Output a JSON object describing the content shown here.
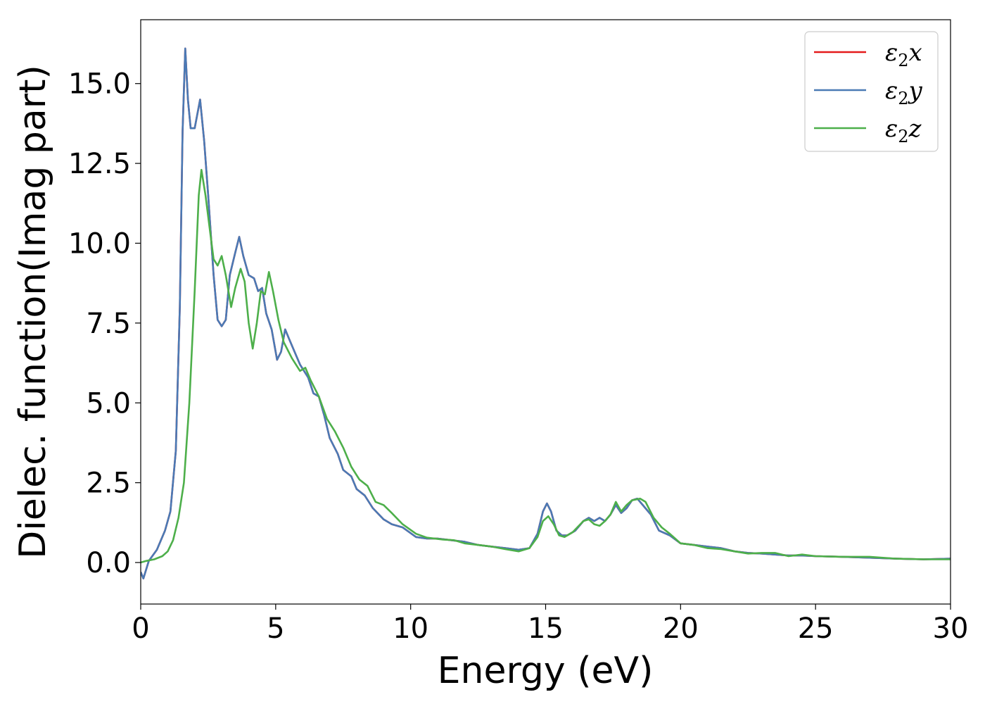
{
  "chart_data": {
    "type": "line",
    "xlabel": "Energy (eV)",
    "ylabel": "Dielec. function(Imag part)",
    "xlim": [
      0,
      30
    ],
    "ylim": [
      -1.3,
      17.0
    ],
    "xticks": [
      0,
      5,
      10,
      15,
      20,
      25,
      30
    ],
    "xtick_labels": [
      "0",
      "5",
      "10",
      "15",
      "20",
      "25",
      "30"
    ],
    "yticks": [
      0.0,
      2.5,
      5.0,
      7.5,
      10.0,
      12.5,
      15.0
    ],
    "ytick_labels": [
      "0.0",
      "2.5",
      "5.0",
      "7.5",
      "10.0",
      "12.5",
      "15.0"
    ],
    "grid": false,
    "legend_position": "top-right",
    "series": [
      {
        "name": "ε₂x",
        "legend_base": "ε",
        "legend_sub": "2",
        "legend_suffix": "x",
        "color": "#e41a1c",
        "points": [
          [
            0,
            -0.3
          ],
          [
            0.1,
            -0.5
          ],
          [
            0.3,
            0.05
          ],
          [
            0.6,
            0.4
          ],
          [
            0.9,
            1.0
          ],
          [
            1.1,
            1.6
          ],
          [
            1.3,
            3.5
          ],
          [
            1.45,
            8.0
          ],
          [
            1.55,
            13.5
          ],
          [
            1.65,
            16.1
          ],
          [
            1.75,
            14.5
          ],
          [
            1.85,
            13.6
          ],
          [
            2.0,
            13.6
          ],
          [
            2.2,
            14.5
          ],
          [
            2.35,
            13.2
          ],
          [
            2.5,
            11.5
          ],
          [
            2.7,
            9.0
          ],
          [
            2.85,
            7.6
          ],
          [
            3.0,
            7.4
          ],
          [
            3.15,
            7.6
          ],
          [
            3.3,
            9.0
          ],
          [
            3.5,
            9.7
          ],
          [
            3.65,
            10.2
          ],
          [
            3.8,
            9.6
          ],
          [
            4.0,
            9.0
          ],
          [
            4.2,
            8.9
          ],
          [
            4.35,
            8.5
          ],
          [
            4.5,
            8.6
          ],
          [
            4.65,
            7.8
          ],
          [
            4.85,
            7.3
          ],
          [
            5.05,
            6.35
          ],
          [
            5.2,
            6.6
          ],
          [
            5.35,
            7.3
          ],
          [
            5.5,
            7.0
          ],
          [
            5.7,
            6.6
          ],
          [
            5.9,
            6.2
          ],
          [
            6.2,
            5.8
          ],
          [
            6.4,
            5.3
          ],
          [
            6.6,
            5.2
          ],
          [
            6.8,
            4.6
          ],
          [
            7.0,
            3.9
          ],
          [
            7.3,
            3.4
          ],
          [
            7.5,
            2.9
          ],
          [
            7.8,
            2.7
          ],
          [
            8.0,
            2.3
          ],
          [
            8.3,
            2.1
          ],
          [
            8.6,
            1.7
          ],
          [
            9.0,
            1.35
          ],
          [
            9.3,
            1.2
          ],
          [
            9.7,
            1.1
          ],
          [
            10.2,
            0.8
          ],
          [
            10.6,
            0.75
          ],
          [
            11.0,
            0.75
          ],
          [
            11.5,
            0.7
          ],
          [
            12.0,
            0.65
          ],
          [
            12.5,
            0.55
          ],
          [
            13.0,
            0.5
          ],
          [
            13.5,
            0.45
          ],
          [
            14.0,
            0.4
          ],
          [
            14.4,
            0.45
          ],
          [
            14.7,
            0.9
          ],
          [
            14.9,
            1.6
          ],
          [
            15.05,
            1.85
          ],
          [
            15.2,
            1.6
          ],
          [
            15.4,
            1.0
          ],
          [
            15.6,
            0.85
          ],
          [
            15.8,
            0.85
          ],
          [
            16.1,
            1.0
          ],
          [
            16.4,
            1.3
          ],
          [
            16.6,
            1.4
          ],
          [
            16.8,
            1.3
          ],
          [
            17.0,
            1.4
          ],
          [
            17.2,
            1.3
          ],
          [
            17.4,
            1.5
          ],
          [
            17.6,
            1.8
          ],
          [
            17.8,
            1.55
          ],
          [
            18.0,
            1.7
          ],
          [
            18.2,
            1.95
          ],
          [
            18.4,
            2.0
          ],
          [
            18.6,
            1.8
          ],
          [
            18.9,
            1.5
          ],
          [
            19.2,
            1.0
          ],
          [
            19.6,
            0.85
          ],
          [
            20.0,
            0.6
          ],
          [
            20.5,
            0.55
          ],
          [
            21.0,
            0.5
          ],
          [
            21.5,
            0.45
          ],
          [
            22.0,
            0.35
          ],
          [
            22.5,
            0.3
          ],
          [
            23.0,
            0.28
          ],
          [
            23.5,
            0.25
          ],
          [
            24.0,
            0.22
          ],
          [
            24.5,
            0.22
          ],
          [
            25.0,
            0.2
          ],
          [
            26.0,
            0.18
          ],
          [
            27.0,
            0.15
          ],
          [
            28.0,
            0.12
          ],
          [
            29.0,
            0.1
          ],
          [
            30.0,
            0.12
          ]
        ]
      },
      {
        "name": "ε₂y",
        "legend_base": "ε",
        "legend_sub": "2",
        "legend_suffix": "y",
        "color": "#4a7ab5",
        "points": [
          [
            0,
            -0.3
          ],
          [
            0.1,
            -0.5
          ],
          [
            0.3,
            0.05
          ],
          [
            0.6,
            0.4
          ],
          [
            0.9,
            1.0
          ],
          [
            1.1,
            1.6
          ],
          [
            1.3,
            3.5
          ],
          [
            1.45,
            8.0
          ],
          [
            1.55,
            13.5
          ],
          [
            1.65,
            16.1
          ],
          [
            1.75,
            14.5
          ],
          [
            1.85,
            13.6
          ],
          [
            2.0,
            13.6
          ],
          [
            2.2,
            14.5
          ],
          [
            2.35,
            13.2
          ],
          [
            2.5,
            11.5
          ],
          [
            2.7,
            9.0
          ],
          [
            2.85,
            7.6
          ],
          [
            3.0,
            7.4
          ],
          [
            3.15,
            7.6
          ],
          [
            3.3,
            9.0
          ],
          [
            3.5,
            9.7
          ],
          [
            3.65,
            10.2
          ],
          [
            3.8,
            9.6
          ],
          [
            4.0,
            9.0
          ],
          [
            4.2,
            8.9
          ],
          [
            4.35,
            8.5
          ],
          [
            4.5,
            8.6
          ],
          [
            4.65,
            7.8
          ],
          [
            4.85,
            7.3
          ],
          [
            5.05,
            6.35
          ],
          [
            5.2,
            6.6
          ],
          [
            5.35,
            7.3
          ],
          [
            5.5,
            7.0
          ],
          [
            5.7,
            6.6
          ],
          [
            5.9,
            6.2
          ],
          [
            6.2,
            5.8
          ],
          [
            6.4,
            5.3
          ],
          [
            6.6,
            5.2
          ],
          [
            6.8,
            4.6
          ],
          [
            7.0,
            3.9
          ],
          [
            7.3,
            3.4
          ],
          [
            7.5,
            2.9
          ],
          [
            7.8,
            2.7
          ],
          [
            8.0,
            2.3
          ],
          [
            8.3,
            2.1
          ],
          [
            8.6,
            1.7
          ],
          [
            9.0,
            1.35
          ],
          [
            9.3,
            1.2
          ],
          [
            9.7,
            1.1
          ],
          [
            10.2,
            0.8
          ],
          [
            10.6,
            0.75
          ],
          [
            11.0,
            0.75
          ],
          [
            11.5,
            0.7
          ],
          [
            12.0,
            0.65
          ],
          [
            12.5,
            0.55
          ],
          [
            13.0,
            0.5
          ],
          [
            13.5,
            0.45
          ],
          [
            14.0,
            0.4
          ],
          [
            14.4,
            0.45
          ],
          [
            14.7,
            0.9
          ],
          [
            14.9,
            1.6
          ],
          [
            15.05,
            1.85
          ],
          [
            15.2,
            1.6
          ],
          [
            15.4,
            1.0
          ],
          [
            15.6,
            0.85
          ],
          [
            15.8,
            0.85
          ],
          [
            16.1,
            1.0
          ],
          [
            16.4,
            1.3
          ],
          [
            16.6,
            1.4
          ],
          [
            16.8,
            1.3
          ],
          [
            17.0,
            1.4
          ],
          [
            17.2,
            1.3
          ],
          [
            17.4,
            1.5
          ],
          [
            17.6,
            1.8
          ],
          [
            17.8,
            1.55
          ],
          [
            18.0,
            1.7
          ],
          [
            18.2,
            1.95
          ],
          [
            18.4,
            2.0
          ],
          [
            18.6,
            1.8
          ],
          [
            18.9,
            1.5
          ],
          [
            19.2,
            1.0
          ],
          [
            19.6,
            0.85
          ],
          [
            20.0,
            0.6
          ],
          [
            20.5,
            0.55
          ],
          [
            21.0,
            0.5
          ],
          [
            21.5,
            0.45
          ],
          [
            22.0,
            0.35
          ],
          [
            22.5,
            0.3
          ],
          [
            23.0,
            0.28
          ],
          [
            23.5,
            0.25
          ],
          [
            24.0,
            0.22
          ],
          [
            24.5,
            0.22
          ],
          [
            25.0,
            0.2
          ],
          [
            26.0,
            0.18
          ],
          [
            27.0,
            0.15
          ],
          [
            28.0,
            0.12
          ],
          [
            29.0,
            0.1
          ],
          [
            30.0,
            0.12
          ]
        ]
      },
      {
        "name": "ε₂z",
        "legend_base": "ε",
        "legend_sub": "2",
        "legend_suffix": "z",
        "color": "#4daf4a",
        "points": [
          [
            0,
            0.0
          ],
          [
            0.2,
            0.05
          ],
          [
            0.5,
            0.1
          ],
          [
            0.8,
            0.2
          ],
          [
            1.0,
            0.35
          ],
          [
            1.2,
            0.7
          ],
          [
            1.4,
            1.4
          ],
          [
            1.6,
            2.5
          ],
          [
            1.8,
            5.0
          ],
          [
            2.0,
            8.5
          ],
          [
            2.15,
            11.5
          ],
          [
            2.25,
            12.3
          ],
          [
            2.4,
            11.5
          ],
          [
            2.55,
            10.5
          ],
          [
            2.7,
            9.5
          ],
          [
            2.85,
            9.3
          ],
          [
            3.0,
            9.6
          ],
          [
            3.15,
            9.0
          ],
          [
            3.35,
            8.0
          ],
          [
            3.5,
            8.6
          ],
          [
            3.7,
            9.2
          ],
          [
            3.85,
            8.8
          ],
          [
            4.0,
            7.5
          ],
          [
            4.15,
            6.7
          ],
          [
            4.3,
            7.5
          ],
          [
            4.45,
            8.5
          ],
          [
            4.6,
            8.4
          ],
          [
            4.75,
            9.1
          ],
          [
            4.9,
            8.5
          ],
          [
            5.1,
            7.6
          ],
          [
            5.3,
            6.9
          ],
          [
            5.6,
            6.4
          ],
          [
            5.9,
            6.0
          ],
          [
            6.1,
            6.1
          ],
          [
            6.3,
            5.7
          ],
          [
            6.6,
            5.2
          ],
          [
            6.9,
            4.5
          ],
          [
            7.2,
            4.1
          ],
          [
            7.5,
            3.6
          ],
          [
            7.8,
            3.0
          ],
          [
            8.1,
            2.6
          ],
          [
            8.4,
            2.4
          ],
          [
            8.7,
            1.9
          ],
          [
            9.0,
            1.8
          ],
          [
            9.3,
            1.55
          ],
          [
            9.7,
            1.2
          ],
          [
            10.2,
            0.9
          ],
          [
            10.6,
            0.78
          ],
          [
            11.2,
            0.72
          ],
          [
            11.6,
            0.7
          ],
          [
            12.0,
            0.6
          ],
          [
            12.5,
            0.55
          ],
          [
            13.0,
            0.5
          ],
          [
            13.5,
            0.42
          ],
          [
            14.0,
            0.35
          ],
          [
            14.4,
            0.45
          ],
          [
            14.7,
            0.8
          ],
          [
            14.9,
            1.3
          ],
          [
            15.1,
            1.45
          ],
          [
            15.3,
            1.2
          ],
          [
            15.5,
            0.85
          ],
          [
            15.7,
            0.8
          ],
          [
            16.0,
            0.95
          ],
          [
            16.4,
            1.3
          ],
          [
            16.6,
            1.35
          ],
          [
            16.8,
            1.2
          ],
          [
            17.0,
            1.15
          ],
          [
            17.2,
            1.3
          ],
          [
            17.4,
            1.5
          ],
          [
            17.6,
            1.9
          ],
          [
            17.8,
            1.6
          ],
          [
            18.0,
            1.8
          ],
          [
            18.2,
            1.95
          ],
          [
            18.5,
            2.0
          ],
          [
            18.7,
            1.9
          ],
          [
            19.0,
            1.4
          ],
          [
            19.3,
            1.1
          ],
          [
            19.6,
            0.9
          ],
          [
            20.0,
            0.6
          ],
          [
            20.5,
            0.55
          ],
          [
            21.0,
            0.45
          ],
          [
            21.5,
            0.42
          ],
          [
            22.0,
            0.35
          ],
          [
            22.5,
            0.28
          ],
          [
            23.0,
            0.3
          ],
          [
            23.5,
            0.3
          ],
          [
            24.0,
            0.2
          ],
          [
            24.5,
            0.25
          ],
          [
            25.0,
            0.2
          ],
          [
            26.0,
            0.18
          ],
          [
            27.0,
            0.18
          ],
          [
            28.0,
            0.12
          ],
          [
            29.0,
            0.1
          ],
          [
            30.0,
            0.1
          ]
        ]
      }
    ]
  }
}
